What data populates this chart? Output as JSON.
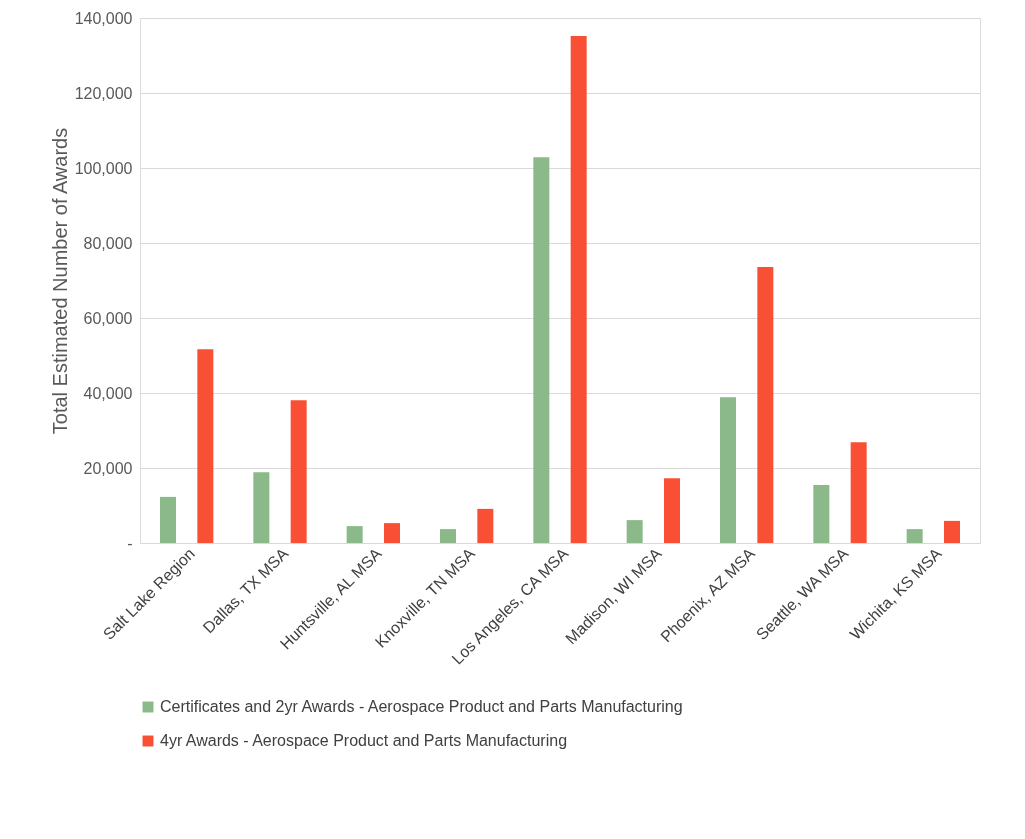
{
  "chart_data": {
    "type": "bar",
    "ylabel": "Total Estimated Number of Awards",
    "categories": [
      "Salt Lake Region",
      "Dallas, TX MSA",
      "Huntsville, AL MSA",
      "Knoxville, TN MSA",
      "Los Angeles, CA MSA",
      "Madison, WI MSA",
      "Phoenix, AZ MSA",
      "Seattle, WA MSA",
      "Wichita, KS MSA"
    ],
    "series": [
      {
        "name": "Certificates and 2yr Awards - Aerospace Product and Parts Manufacturing",
        "color": "#8bb98a",
        "values": [
          12300,
          18900,
          4500,
          3700,
          102900,
          6100,
          38900,
          15500,
          3700
        ]
      },
      {
        "name": "4yr Awards - Aerospace Product and Parts Manufacturing",
        "color": "#f95035",
        "values": [
          51700,
          38100,
          5300,
          9100,
          135200,
          17300,
          73600,
          26900,
          5900
        ]
      }
    ],
    "ylim": [
      0,
      140000
    ],
    "yticks": [
      {
        "value": 0,
        "label": "-"
      },
      {
        "value": 20000,
        "label": "20,000"
      },
      {
        "value": 40000,
        "label": "40,000"
      },
      {
        "value": 60000,
        "label": "60,000"
      },
      {
        "value": 80000,
        "label": "80,000"
      },
      {
        "value": 100000,
        "label": "100,000"
      },
      {
        "value": 120000,
        "label": "120,000"
      },
      {
        "value": 140000,
        "label": "140,000"
      }
    ],
    "grid": "y",
    "legend": "bottom"
  }
}
